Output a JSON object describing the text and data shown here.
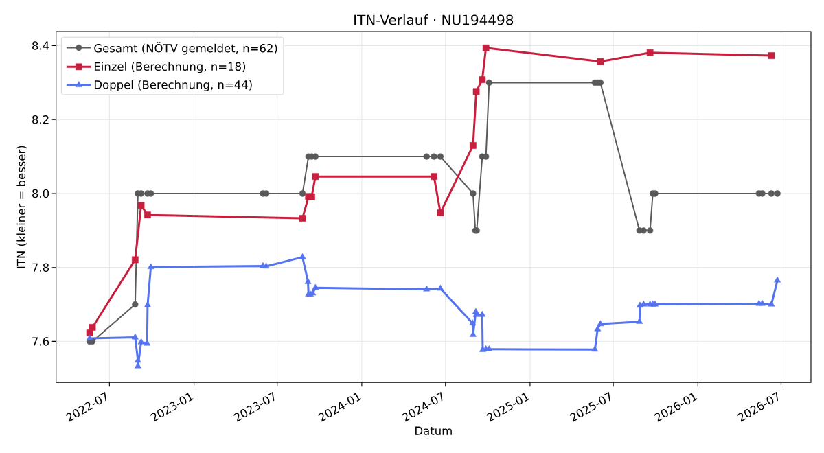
{
  "chart_data": {
    "type": "line",
    "title": "ITN-Verlauf · NU194498",
    "xlabel": "Datum",
    "ylabel": "ITN  (kleiner = besser)",
    "xlim": [
      "2022-03-07",
      "2026-09-04"
    ],
    "xticks": [
      "2022-07",
      "2023-01",
      "2023-07",
      "2024-01",
      "2024-07",
      "2025-01",
      "2025-07",
      "2026-01",
      "2026-07"
    ],
    "ylim": [
      7.489,
      8.438
    ],
    "yticks": [
      7.6,
      7.8,
      {
        "value": 8.0,
        "label": "8.0"
      },
      8.2,
      8.4
    ],
    "grid": true,
    "legend": "top left",
    "series": [
      {
        "name": "Gesamt (NÖTV gemeldet, n=62)",
        "color": "#5a5a5a",
        "marker": "circle",
        "x": [
          "2022-05-19",
          "2022-05-25",
          "2022-08-26",
          "2022-09-01",
          "2022-09-08",
          "2022-09-22",
          "2022-09-29",
          "2023-05-31",
          "2023-06-07",
          "2023-08-25",
          "2023-09-07",
          "2023-09-14",
          "2023-09-22",
          "2024-05-21",
          "2024-06-06",
          "2024-06-20",
          "2024-08-30",
          "2024-09-04",
          "2024-09-07",
          "2024-09-19",
          "2024-09-27",
          "2024-10-04",
          "2025-05-22",
          "2025-05-28",
          "2025-06-03",
          "2025-08-27",
          "2025-09-05",
          "2025-09-19",
          "2025-09-25",
          "2025-09-30",
          "2026-05-14",
          "2026-05-21",
          "2026-06-10",
          "2026-06-23"
        ],
        "values": [
          7.6,
          7.6,
          7.7,
          8.0,
          8.0,
          8.0,
          8.0,
          8.0,
          8.0,
          8.0,
          8.1,
          8.1,
          8.1,
          8.1,
          8.1,
          8.1,
          8.0,
          7.9,
          7.9,
          8.1,
          8.1,
          8.3,
          8.3,
          8.3,
          8.3,
          7.9,
          7.9,
          7.9,
          8.0,
          8.0,
          8.0,
          8.0,
          8.0,
          8.0
        ]
      },
      {
        "name": "Einzel (Berechnung, n=18)",
        "color": "#c91f3e",
        "marker": "square",
        "x": [
          "2022-05-19",
          "2022-05-25",
          "2022-08-26",
          "2022-09-08",
          "2022-09-22",
          "2023-08-25",
          "2023-09-07",
          "2023-09-14",
          "2023-09-22",
          "2024-06-06",
          "2024-06-20",
          "2024-08-30",
          "2024-09-06",
          "2024-09-19",
          "2024-09-27",
          "2025-06-03",
          "2025-09-19",
          "2026-06-10"
        ],
        "values": [
          7.623,
          7.638,
          7.821,
          7.968,
          7.942,
          7.933,
          7.992,
          7.991,
          8.046,
          8.046,
          7.948,
          8.13,
          8.276,
          8.308,
          8.394,
          8.357,
          8.381,
          8.373
        ]
      },
      {
        "name": "Doppel (Berechnung, n=44)",
        "color": "#5574ee",
        "marker": "triangle",
        "x": [
          "2022-05-19",
          "2022-08-26",
          "2022-09-01",
          "2022-09-01",
          "2022-09-08",
          "2022-09-21",
          "2022-09-22",
          "2022-09-29",
          "2023-05-31",
          "2023-06-07",
          "2023-08-25",
          "2023-09-06",
          "2023-09-07",
          "2023-09-11",
          "2023-09-16",
          "2023-09-22",
          "2024-05-21",
          "2024-06-20",
          "2024-08-29",
          "2024-08-30",
          "2024-09-05",
          "2024-09-06",
          "2024-09-19",
          "2024-09-20",
          "2024-09-27",
          "2024-10-04",
          "2025-05-22",
          "2025-05-28",
          "2025-06-03",
          "2025-08-27",
          "2025-08-28",
          "2025-09-05",
          "2025-09-19",
          "2025-09-25",
          "2025-09-30",
          "2026-05-14",
          "2026-05-21",
          "2026-06-10",
          "2026-06-23"
        ],
        "values": [
          7.608,
          7.611,
          7.548,
          7.533,
          7.598,
          7.594,
          7.698,
          7.801,
          7.804,
          7.803,
          7.828,
          7.761,
          7.727,
          7.727,
          7.73,
          7.745,
          7.741,
          7.743,
          7.649,
          7.618,
          7.68,
          7.672,
          7.672,
          7.577,
          7.579,
          7.579,
          7.578,
          7.633,
          7.647,
          7.653,
          7.697,
          7.7,
          7.7,
          7.7,
          7.7,
          7.702,
          7.702,
          7.7,
          7.765
        ]
      }
    ]
  }
}
